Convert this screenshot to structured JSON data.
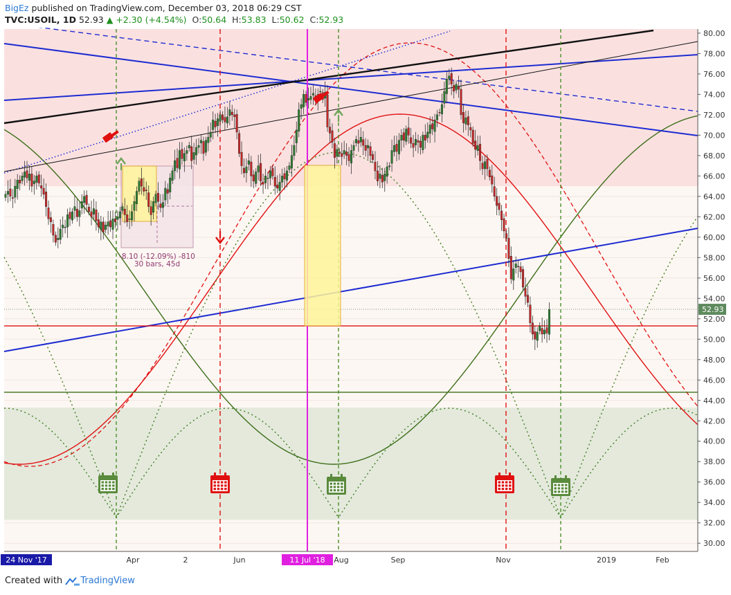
{
  "header": {
    "author": "BigEz",
    "published": "published on TradingView.com, December 03, 2018 06:29 CST",
    "symbol": "TVC:USOIL, 1D",
    "last": "52.93",
    "change": "▲ +2.30 (+4.54%)",
    "o_label": "O:",
    "o_value": "50.64",
    "h_label": "H:",
    "h_value": "53.83",
    "l_label": "L:",
    "l_value": "50.62",
    "c_label": "C:",
    "c_value": "52.93"
  },
  "footer": {
    "created_with": "Created with",
    "brand": "TradingView"
  },
  "colors": {
    "up": "#2e7d32",
    "down": "#c62828",
    "red_zone": "#f9dede",
    "green_zone": "#e4e9dc",
    "trend_blue": "#1d2bd1",
    "trend_black": "#111111",
    "cycle_red": "#e01010",
    "cycle_green": "#3c6e18",
    "magenta": "#e020e0",
    "highlight": "#fff59a"
  },
  "icons": [
    "calendar-icon",
    "hammer-icon",
    "arrow-up-icon",
    "arrow-down-icon"
  ],
  "chart_data": {
    "type": "candlestick",
    "ylim": [
      29.2,
      80.4
    ],
    "y_ticks": [
      30,
      32,
      34,
      36,
      38,
      40,
      42,
      44,
      46,
      48,
      50,
      52,
      54,
      56,
      58,
      60,
      62,
      64,
      66,
      68,
      70,
      72,
      74,
      76,
      78,
      80
    ],
    "x_tick_labels": [
      "24 Nov '17",
      "Apr",
      "2",
      "Jun",
      "11 Jul '18",
      "Aug",
      "Sep",
      "Nov",
      "2019",
      "Feb"
    ],
    "highlighted_x_labels": [
      "24 Nov '17",
      "11 Jul '18"
    ],
    "last_price_label": "52.93",
    "measure_label": "-8.10 (-12.09%) -810",
    "measure_label2": "30 bars, 45d",
    "closes": [
      64.2,
      64.5,
      64.0,
      63.8,
      65.0,
      65.6,
      65.3,
      66.0,
      66.4,
      65.8,
      66.2,
      65.0,
      65.5,
      66.0,
      65.3,
      64.8,
      64.2,
      63.0,
      61.8,
      61.5,
      60.2,
      59.5,
      59.9,
      60.8,
      61.2,
      61.0,
      62.2,
      61.8,
      62.5,
      63.0,
      62.0,
      62.6,
      63.5,
      64.0,
      63.2,
      62.5,
      62.0,
      62.8,
      61.6,
      61.0,
      61.5,
      60.5,
      61.2,
      61.5,
      61.0,
      61.8,
      61.5,
      62.0,
      62.5,
      63.0,
      62.2,
      61.5,
      61.8,
      62.5,
      63.5,
      64.5,
      65.5,
      65.0,
      64.5,
      64.6,
      63.0,
      62.2,
      63.5,
      64.2,
      63.5,
      62.9,
      63.4,
      64.8,
      64.3,
      65.8,
      66.5,
      67.5,
      66.8,
      68.5,
      67.7,
      68.2,
      68.5,
      69.0,
      67.5,
      68.3,
      68.8,
      69.0,
      69.5,
      68.2,
      69.5,
      69.8,
      70.3,
      71.5,
      70.8,
      71.6,
      72.0,
      71.5,
      71.3,
      71.8,
      72.5,
      72.0,
      71.8,
      70.3,
      68.2,
      67.0,
      66.3,
      66.9,
      67.5,
      66.0,
      65.5,
      66.4,
      67.0,
      65.5,
      65.2,
      66.0,
      65.8,
      66.5,
      66.0,
      65.0,
      64.8,
      65.4,
      66.0,
      65.7,
      66.5,
      67.0,
      68.0,
      69.0,
      70.5,
      72.5,
      73.0,
      74.0,
      73.2,
      73.6,
      73.8,
      74.1,
      73.5,
      74.0,
      74.3,
      73.5,
      74.2,
      70.8,
      70.2,
      69.3,
      67.8,
      68.6,
      68.2,
      67.9,
      68.5,
      68.0,
      67.5,
      68.5,
      69.0,
      69.6,
      69.2,
      69.8,
      69.0,
      68.5,
      69.0,
      68.0,
      67.6,
      66.5,
      65.5,
      66.2,
      65.4,
      66.2,
      66.9,
      67.0,
      68.5,
      69.0,
      68.4,
      69.5,
      70.0,
      69.5,
      70.6,
      70.0,
      69.2,
      68.8,
      69.6,
      69.3,
      68.8,
      70.0,
      69.5,
      70.3,
      71.0,
      70.6,
      71.5,
      72.0,
      72.2,
      73.0,
      74.3,
      75.5,
      75.8,
      75.0,
      74.3,
      75.0,
      74.5,
      72.0,
      71.2,
      71.7,
      71.0,
      70.5,
      69.2,
      68.6,
      69.0,
      67.5,
      66.7,
      67.4,
      66.7,
      65.9,
      65.2,
      64.0,
      63.1,
      62.7,
      61.7,
      60.6,
      59.9,
      57.9,
      55.9,
      56.9,
      57.4,
      57.1,
      56.6,
      55.1,
      54.2,
      53.6,
      51.6,
      50.5,
      50.0,
      50.7,
      51.3,
      50.5,
      50.9,
      50.6,
      52.9
    ],
    "bars_count": 233,
    "axis_start": "24 Nov '17",
    "ranges": {
      "red_zone": [
        65.0,
        80.4
      ],
      "green_zone": [
        32.3,
        43.3
      ]
    },
    "levels": {
      "red_horizontal": 51.3,
      "green_horizontal": 44.8,
      "last_price": 52.93
    }
  }
}
